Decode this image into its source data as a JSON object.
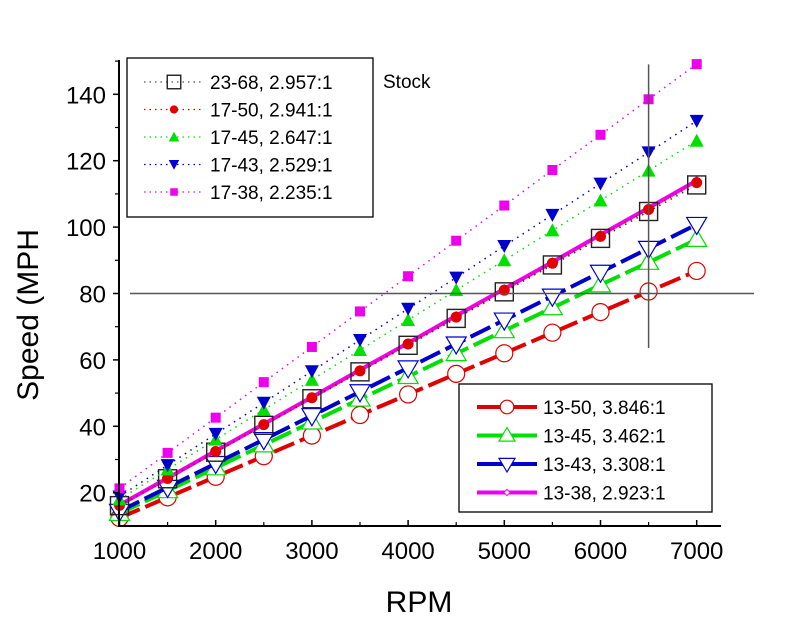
{
  "chart_data": {
    "type": "line",
    "title": "",
    "xlabel": "RPM",
    "ylabel": "Speed (MPH",
    "xlim": [
      1000,
      7250
    ],
    "ylim": [
      10,
      150
    ],
    "x_ticks": [
      1000,
      2000,
      3000,
      4000,
      5000,
      6000,
      7000
    ],
    "x_tick_labels": [
      "1000",
      "2000",
      "3000",
      "4000",
      "5000",
      "6000",
      "7000"
    ],
    "y_ticks": [
      20,
      40,
      60,
      80,
      100,
      120,
      140
    ],
    "y_tick_labels": [
      "20",
      "40",
      "60",
      "80",
      "100",
      "120",
      "140"
    ],
    "grid": false,
    "x": [
      1000,
      1500,
      2000,
      2500,
      3000,
      3500,
      4000,
      4500,
      5000,
      5500,
      6000,
      6500,
      7000
    ],
    "reference_lines": {
      "horizontal": {
        "y": 80,
        "x_from": 1100,
        "x_to": 7600
      },
      "vertical": {
        "x": 6500,
        "y_from": 63,
        "y_to": 149
      }
    },
    "annotation": "Stock",
    "legends": [
      {
        "placement": "top-left",
        "entries": [
          0,
          1,
          2,
          3,
          4
        ]
      },
      {
        "placement": "bottom-right",
        "entries": [
          5,
          6,
          7,
          8
        ]
      }
    ],
    "series": [
      {
        "name": "23-68, 2.957:1",
        "color": "#000000",
        "line": "dotted",
        "marker": "open-square",
        "values": [
          16.1,
          24.2,
          32.2,
          40.3,
          48.3,
          56.4,
          64.4,
          72.5,
          80.5,
          88.6,
          96.6,
          104.7,
          112.7
        ]
      },
      {
        "name": "17-50, 2.941:1",
        "color": "#e00000",
        "line": "dotted",
        "marker": "filled-circle",
        "values": [
          16.2,
          24.3,
          32.4,
          40.5,
          48.6,
          56.7,
          64.8,
          72.9,
          81.0,
          89.1,
          97.2,
          105.3,
          113.4
        ]
      },
      {
        "name": "17-45, 2.647:1",
        "color": "#00e000",
        "line": "dotted",
        "marker": "filled-triangle-up",
        "values": [
          18.0,
          27.0,
          36.0,
          45.0,
          54.0,
          63.0,
          72.0,
          81.0,
          90.0,
          99.0,
          108.0,
          117.0,
          126.0
        ]
      },
      {
        "name": "17-43, 2.529:1",
        "color": "#0000cc",
        "line": "dotted",
        "marker": "filled-triangle-down",
        "values": [
          18.85,
          28.3,
          37.7,
          47.1,
          56.6,
          66.0,
          75.4,
          84.8,
          94.3,
          103.7,
          113.1,
          122.5,
          132.0
        ]
      },
      {
        "name": "17-38, 2.235:1",
        "color": "#ee00ee",
        "line": "dotted",
        "marker": "filled-square",
        "values": [
          21.3,
          32.0,
          42.6,
          53.3,
          63.9,
          74.6,
          85.2,
          95.9,
          106.5,
          117.2,
          127.8,
          138.5,
          149.1
        ]
      },
      {
        "name": "13-50, 3.846:1",
        "color": "#e00000",
        "line": "dashed",
        "marker": "open-circle",
        "values": [
          12.4,
          18.6,
          24.8,
          31.0,
          37.2,
          43.4,
          49.6,
          55.8,
          62.0,
          68.2,
          74.4,
          80.6,
          86.8
        ]
      },
      {
        "name": "13-45, 3.462:1",
        "color": "#00e000",
        "line": "dashed",
        "marker": "open-triangle-up",
        "values": [
          13.76,
          20.6,
          27.5,
          34.4,
          41.3,
          48.2,
          55.0,
          61.9,
          68.8,
          75.7,
          82.6,
          89.4,
          96.3
        ]
      },
      {
        "name": "13-43, 3.308:1",
        "color": "#0000cc",
        "line": "dashed",
        "marker": "open-triangle-down",
        "values": [
          14.4,
          21.6,
          28.8,
          36.0,
          43.2,
          50.4,
          57.6,
          64.8,
          72.0,
          79.2,
          86.4,
          93.6,
          100.8
        ]
      },
      {
        "name": "13-38, 2.923:1",
        "color": "#ee00ee",
        "line": "solid",
        "marker": "open-diamond",
        "values": [
          16.3,
          24.4,
          32.6,
          40.7,
          48.8,
          57.0,
          65.1,
          73.3,
          81.4,
          89.5,
          97.7,
          105.8,
          114.0
        ]
      }
    ]
  }
}
